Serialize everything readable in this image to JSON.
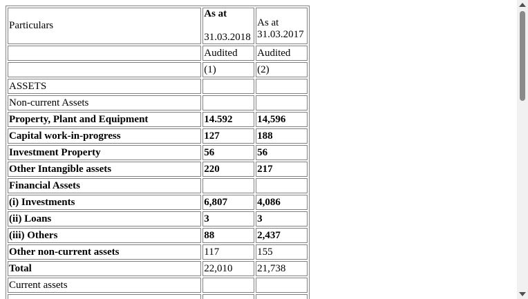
{
  "table": {
    "header": {
      "particulars": "Particulars",
      "col1_as_at": "As at",
      "col1_date": "31.03.2018",
      "col2_as_at": "As at",
      "col2_date": "31.03.2017",
      "col1_audit": "Audited",
      "col2_audit": "Audited",
      "col1_index": "(1)",
      "col2_index": "(2)"
    },
    "rows": [
      {
        "label": "ASSETS",
        "v1": "",
        "v2": ""
      },
      {
        "label": "Non-current Assets",
        "v1": "",
        "v2": ""
      },
      {
        "label": "Property, Plant and Equipment",
        "v1": "14.592",
        "v2": "14,596"
      },
      {
        "label": "Capital work-in-progress",
        "v1": "127",
        "v2": "188"
      },
      {
        "label": "Investment Property",
        "v1": "56",
        "v2": "56"
      },
      {
        "label": "Other Intangible assets",
        "v1": "220",
        "v2": "217"
      },
      {
        "label": "Financial Assets",
        "v1": "",
        "v2": ""
      },
      {
        "label": "(i) Investments",
        "v1": "6,807",
        "v2": "4,086"
      },
      {
        "label": "(ii) Loans",
        "v1": "3",
        "v2": "3"
      },
      {
        "label": "(iii) Others",
        "v1": "88",
        "v2": "2,437"
      },
      {
        "label": "Other non-current assets",
        "v1": "117",
        "v2": "155"
      },
      {
        "label": "Total",
        "v1": "22,010",
        "v2": "21,738"
      },
      {
        "label": "Current assets",
        "v1": "",
        "v2": ""
      }
    ]
  },
  "colors": {
    "border": "#808080",
    "background": "#ffffff",
    "scrollbar_track": "#f1f1f1",
    "scrollbar_thumb": "#8a8a8a"
  }
}
